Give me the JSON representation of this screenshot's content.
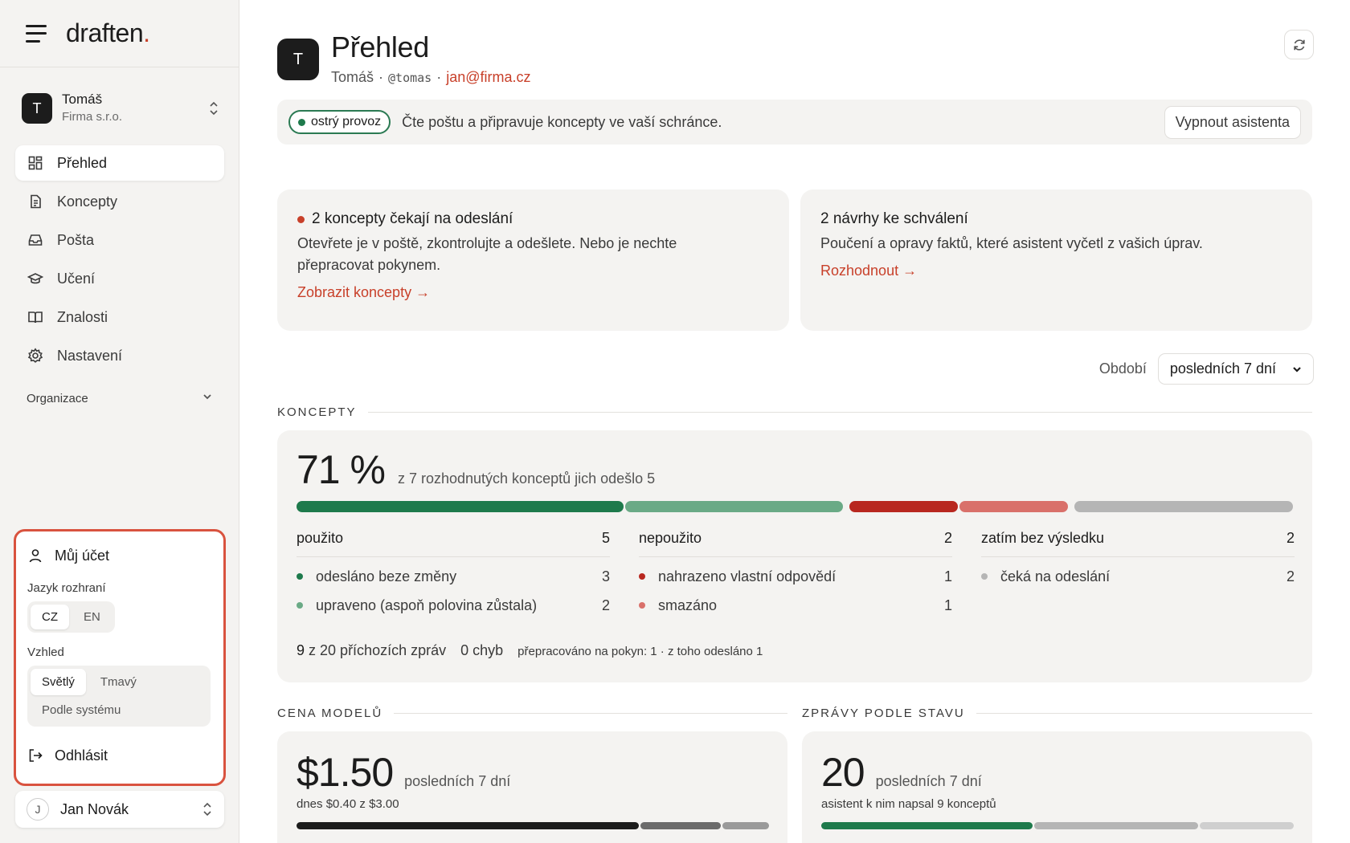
{
  "brand": {
    "name": "draften",
    "dot": "."
  },
  "org": {
    "initial": "T",
    "name": "Tomáš",
    "company": "Firma s.r.o."
  },
  "nav": {
    "items": [
      {
        "label": "Přehled",
        "icon": "grid-icon"
      },
      {
        "label": "Koncepty",
        "icon": "document-icon"
      },
      {
        "label": "Pošta",
        "icon": "inbox-icon"
      },
      {
        "label": "Učení",
        "icon": "graduation-cap-icon"
      },
      {
        "label": "Znalosti",
        "icon": "book-icon"
      },
      {
        "label": "Nastavení",
        "icon": "gear-icon"
      }
    ],
    "group": "Organizace"
  },
  "account_menu": {
    "title": "Můj účet",
    "language_label": "Jazyk rozhraní",
    "languages": [
      "CZ",
      "EN"
    ],
    "language_selected": "CZ",
    "appearance_label": "Vzhled",
    "appearance": [
      "Světlý",
      "Tmavý",
      "Podle systému"
    ],
    "appearance_selected": "Světlý",
    "logout": "Odhlásit"
  },
  "user": {
    "initial": "J",
    "name": "Jan Novák"
  },
  "header": {
    "initial": "T",
    "title": "Přehled",
    "name": "Tomáš",
    "sep1": "·",
    "handle": "@tomas",
    "sep2": "·",
    "email": "jan@firma.cz"
  },
  "banner": {
    "status": "ostrý provoz",
    "text": "Čte poštu a připravuje koncepty ve vaší schránce.",
    "button": "Vypnout asistenta"
  },
  "cards": {
    "drafts": {
      "title": "2 koncepty čekají na odeslání",
      "body": "Otevřete je v poště, zkontrolujte a odešlete. Nebo je nechte přepracovat pokynem.",
      "link": "Zobrazit koncepty →"
    },
    "proposals": {
      "title": "2 návrhy ke schválení",
      "body": "Poučení a opravy faktů, které asistent vyčetl z vašich úprav.",
      "link": "Rozhodnout →"
    }
  },
  "period": {
    "label": "Období",
    "value": "posledních 7 dní"
  },
  "concepts": {
    "section": "KONCEPTY",
    "percent": "71 %",
    "summary": "z 7 rozhodnutých konceptů jich odešlo 5",
    "bar": {
      "groups": [
        {
          "segments": [
            {
              "value": 3,
              "color": "#1e7a4c"
            },
            {
              "value": 2,
              "color": "#6aaa86"
            }
          ]
        },
        {
          "segments": [
            {
              "value": 1,
              "color": "#b8271f"
            },
            {
              "value": 1,
              "color": "#d9706a"
            }
          ]
        },
        {
          "segments": [
            {
              "value": 2,
              "color": "#b5b5b5"
            }
          ]
        }
      ]
    },
    "columns": [
      {
        "title": "použito",
        "count": "5",
        "rows": [
          {
            "label": "odesláno beze změny",
            "value": "3",
            "color": "#1e7a4c"
          },
          {
            "label": "upraveno (aspoň polovina zůstala)",
            "value": "2",
            "color": "#6aaa86"
          }
        ]
      },
      {
        "title": "nepoužito",
        "count": "2",
        "rows": [
          {
            "label": "nahrazeno vlastní odpovědí",
            "value": "1",
            "color": "#b8271f"
          },
          {
            "label": "smazáno",
            "value": "1",
            "color": "#d9706a"
          }
        ]
      },
      {
        "title": "zatím bez výsledku",
        "count": "2",
        "rows": [
          {
            "label": "čeká na odeslání",
            "value": "2",
            "color": "#b5b5b5"
          }
        ]
      }
    ],
    "footer": {
      "incoming_num": "9",
      "incoming_text": "z 20 příchozích zpráv",
      "errors": "0 chyb",
      "reworked": "přepracováno na pokyn: 1 · z toho odesláno 1"
    }
  },
  "cost": {
    "section": "CENA MODELŮ",
    "amount": "$1.50",
    "period": "posledních 7 dní",
    "today": "dnes $0.40 z $3.00",
    "bar": [
      {
        "value": 0.73,
        "color": "#1c1c1c"
      },
      {
        "value": 0.17,
        "color": "#6b6b6b"
      },
      {
        "value": 0.1,
        "color": "#9a9a9a"
      }
    ]
  },
  "messages": {
    "section": "ZPRÁVY PODLE STAVU",
    "count": "20",
    "period": "posledních 7 dní",
    "note": "asistent k nim napsal 9 konceptů",
    "bar": [
      {
        "value": 9,
        "color": "#1e7a4c"
      },
      {
        "value": 7,
        "color": "#b5b5b5"
      },
      {
        "value": 4,
        "color": "#cfcfcf"
      }
    ]
  }
}
